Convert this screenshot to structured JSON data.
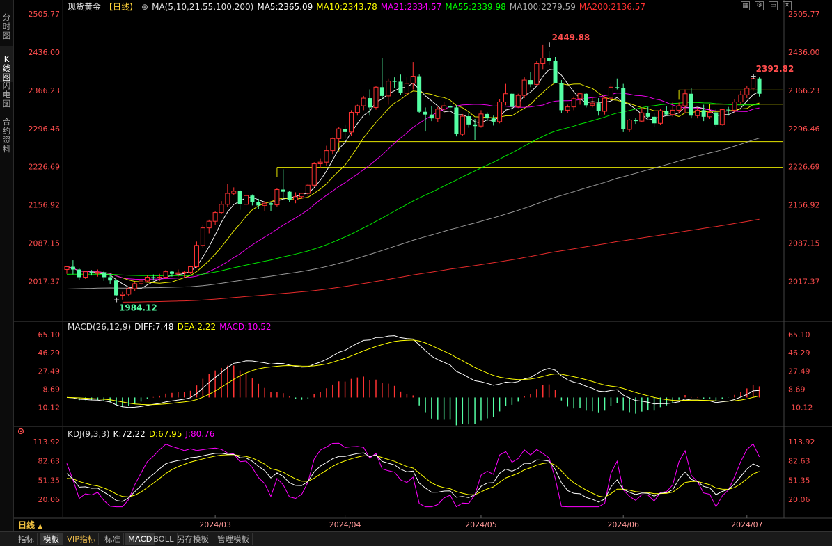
{
  "left_tabs": [
    {
      "label": "分时图",
      "chars": [
        "分",
        "时",
        "图"
      ]
    },
    {
      "label": "K线图",
      "chars": [
        "K",
        "线",
        "图"
      ]
    },
    {
      "label": "闪电图",
      "chars": [
        "闪",
        "电",
        "图"
      ]
    },
    {
      "label": "合约资料",
      "chars": [
        "合",
        "约",
        "资",
        "料"
      ]
    }
  ],
  "active_left_tab": 1,
  "bottom_tabs": [
    "指标",
    "模板",
    "VIP指标",
    "标准",
    "MACD",
    "BOLL",
    "另存模板",
    "管理模板"
  ],
  "active_bottom_tabs": [
    "模板",
    "MACD"
  ],
  "period_label": "日线",
  "period_arrow": "▲",
  "window_icons": [
    "grid-icon",
    "settings-icon",
    "restore-icon",
    "close-icon"
  ],
  "colors": {
    "up": "#ff3232",
    "down": "#54ffa4",
    "ma5": "#ffffff",
    "ma10": "#ffff00",
    "ma21": "#ff00ff",
    "ma55": "#00ff00",
    "ma100": "#aaaaaa",
    "ma200": "#ff3030"
  },
  "header": {
    "name": "现货黄金",
    "period": "【日线】",
    "plus": "⊕",
    "ma_label": "MA(5,10,21,55,100,200)",
    "ma5": "MA5:2365.09",
    "ma10": "MA10:2343.78",
    "ma21": "MA21:2334.57",
    "ma55": "MA55:2339.98",
    "ma100": "MA100:2279.59",
    "ma200": "MA200:2136.57"
  },
  "macd_header": {
    "label": "MACD(26,12,9)",
    "diff": "DIFF:7.48",
    "dea": "DEA:2.22",
    "macd": "MACD:10.52"
  },
  "kdj_header": {
    "label": "KDJ(9,3,3)",
    "k": "K:72.22",
    "d": "D:67.95",
    "j": "J:80.76"
  },
  "chart_data": {
    "type": "candlestick",
    "instrument": "现货黄金",
    "period": "日线",
    "price_ticks": [
      "2505.77",
      "2436.00",
      "2366.23",
      "2296.46",
      "2226.69",
      "2156.92",
      "2087.15",
      "2017.37"
    ],
    "macd_ticks": [
      "65.10",
      "46.29",
      "27.49",
      "8.69",
      "-10.12"
    ],
    "kdj_ticks": [
      "113.92",
      "82.63",
      "51.35",
      "20.06"
    ],
    "x_labels": [
      {
        "label": "2024/03",
        "index": 24
      },
      {
        "label": "2024/04",
        "index": 45
      },
      {
        "label": "2024/05",
        "index": 67
      },
      {
        "label": "2024/06",
        "index": 90
      },
      {
        "label": "2024/07",
        "index": 110
      }
    ],
    "annotations": [
      {
        "text": "2449.88",
        "index": 78,
        "price": 2449.88,
        "pos": "above"
      },
      {
        "text": "1984.12",
        "index": 8,
        "price": 1984.12,
        "pos": "below"
      },
      {
        "text": "2392.82",
        "index": 111,
        "price": 2392.82,
        "pos": "above"
      }
    ],
    "levels": [
      {
        "price": 2366.8,
        "from": 99,
        "to": 115
      },
      {
        "price": 2341.0,
        "from": 104,
        "to": 115
      },
      {
        "price": 2272.5,
        "from": 44,
        "to": 115
      },
      {
        "price": 2225.5,
        "from": 34,
        "to": 115
      }
    ],
    "dates": [
      "2024-02-01",
      "2024-02-02",
      "2024-02-05",
      "2024-02-06",
      "2024-02-07",
      "2024-02-08",
      "2024-02-09",
      "2024-02-12",
      "2024-02-13",
      "2024-02-14",
      "2024-02-15",
      "2024-02-16",
      "2024-02-19",
      "2024-02-20",
      "2024-02-21",
      "2024-02-22",
      "2024-02-23",
      "2024-02-26",
      "2024-02-27",
      "2024-02-28",
      "2024-02-29",
      "2024-03-01",
      "2024-03-04",
      "2024-03-05",
      "2024-03-06",
      "2024-03-07",
      "2024-03-08",
      "2024-03-11",
      "2024-03-12",
      "2024-03-13",
      "2024-03-14",
      "2024-03-15",
      "2024-03-18",
      "2024-03-19",
      "2024-03-20",
      "2024-03-21",
      "2024-03-22",
      "2024-03-25",
      "2024-03-26",
      "2024-03-27",
      "2024-03-28",
      "2024-03-29",
      "2024-04-01",
      "2024-04-02",
      "2024-04-03",
      "2024-04-04",
      "2024-04-05",
      "2024-04-08",
      "2024-04-09",
      "2024-04-10",
      "2024-04-11",
      "2024-04-12",
      "2024-04-15",
      "2024-04-16",
      "2024-04-17",
      "2024-04-18",
      "2024-04-19",
      "2024-04-22",
      "2024-04-23",
      "2024-04-24",
      "2024-04-25",
      "2024-04-26",
      "2024-04-29",
      "2024-04-30",
      "2024-05-01",
      "2024-05-02",
      "2024-05-03",
      "2024-05-06",
      "2024-05-07",
      "2024-05-08",
      "2024-05-09",
      "2024-05-10",
      "2024-05-13",
      "2024-05-14",
      "2024-05-15",
      "2024-05-16",
      "2024-05-17",
      "2024-05-20",
      "2024-05-21",
      "2024-05-22",
      "2024-05-23",
      "2024-05-24",
      "2024-05-27",
      "2024-05-28",
      "2024-05-29",
      "2024-05-30",
      "2024-05-31",
      "2024-06-03",
      "2024-06-04",
      "2024-06-05",
      "2024-06-06",
      "2024-06-07",
      "2024-06-10",
      "2024-06-11",
      "2024-06-12",
      "2024-06-13",
      "2024-06-14",
      "2024-06-17",
      "2024-06-18",
      "2024-06-19",
      "2024-06-20",
      "2024-06-21",
      "2024-06-24",
      "2024-06-25",
      "2024-06-26",
      "2024-06-27",
      "2024-06-28",
      "2024-07-01",
      "2024-07-02",
      "2024-07-03",
      "2024-07-04",
      "2024-07-05",
      "2024-07-08"
    ],
    "ohlc": [
      [
        2039,
        2046,
        2031,
        2044
      ],
      [
        2044,
        2056,
        2030,
        2039
      ],
      [
        2039,
        2042,
        2020,
        2025
      ],
      [
        2025,
        2037,
        2022,
        2035
      ],
      [
        2035,
        2038,
        2028,
        2032
      ],
      [
        2032,
        2039,
        2026,
        2034
      ],
      [
        2034,
        2036,
        2018,
        2025
      ],
      [
        2025,
        2031,
        2013,
        2019
      ],
      [
        2019,
        2021,
        1990,
        1992
      ],
      [
        1992,
        1998,
        1984,
        1994
      ],
      [
        1994,
        2007,
        1990,
        2004
      ],
      [
        2004,
        2016,
        2000,
        2013
      ],
      [
        2013,
        2020,
        2009,
        2018
      ],
      [
        2018,
        2028,
        2016,
        2025
      ],
      [
        2025,
        2030,
        2019,
        2024
      ],
      [
        2024,
        2031,
        2018,
        2025
      ],
      [
        2025,
        2038,
        2022,
        2035
      ],
      [
        2035,
        2036,
        2026,
        2031
      ],
      [
        2031,
        2039,
        2026,
        2033
      ],
      [
        2033,
        2036,
        2024,
        2034
      ],
      [
        2034,
        2046,
        2031,
        2044
      ],
      [
        2044,
        2090,
        2042,
        2083
      ],
      [
        2083,
        2120,
        2079,
        2115
      ],
      [
        2115,
        2130,
        2105,
        2127
      ],
      [
        2127,
        2145,
        2120,
        2143
      ],
      [
        2143,
        2164,
        2140,
        2158
      ],
      [
        2158,
        2195,
        2153,
        2178
      ],
      [
        2178,
        2189,
        2175,
        2182
      ],
      [
        2182,
        2184,
        2148,
        2158
      ],
      [
        2158,
        2176,
        2155,
        2174
      ],
      [
        2174,
        2176,
        2156,
        2162
      ],
      [
        2162,
        2168,
        2150,
        2156
      ],
      [
        2156,
        2164,
        2146,
        2160
      ],
      [
        2160,
        2162,
        2146,
        2157
      ],
      [
        2157,
        2188,
        2154,
        2185
      ],
      [
        2185,
        2222,
        2168,
        2181
      ],
      [
        2181,
        2183,
        2162,
        2166
      ],
      [
        2166,
        2180,
        2160,
        2172
      ],
      [
        2172,
        2179,
        2168,
        2178
      ],
      [
        2178,
        2196,
        2172,
        2193
      ],
      [
        2193,
        2235,
        2190,
        2232
      ],
      [
        2232,
        2242,
        2225,
        2235
      ],
      [
        2235,
        2265,
        2229,
        2256
      ],
      [
        2256,
        2280,
        2249,
        2278
      ],
      [
        2278,
        2300,
        2270,
        2296
      ],
      [
        2296,
        2304,
        2278,
        2290
      ],
      [
        2290,
        2330,
        2283,
        2326
      ],
      [
        2326,
        2340,
        2320,
        2338
      ],
      [
        2338,
        2356,
        2330,
        2352
      ],
      [
        2352,
        2368,
        2320,
        2335
      ],
      [
        2335,
        2374,
        2331,
        2372
      ],
      [
        2372,
        2425,
        2350,
        2356
      ],
      [
        2356,
        2388,
        2340,
        2383
      ],
      [
        2383,
        2390,
        2370,
        2382
      ],
      [
        2382,
        2395,
        2358,
        2361
      ],
      [
        2361,
        2390,
        2355,
        2379
      ],
      [
        2379,
        2418,
        2368,
        2392
      ],
      [
        2392,
        2395,
        2325,
        2327
      ],
      [
        2327,
        2335,
        2291,
        2322
      ],
      [
        2322,
        2338,
        2310,
        2315
      ],
      [
        2315,
        2336,
        2308,
        2332
      ],
      [
        2332,
        2345,
        2325,
        2338
      ],
      [
        2338,
        2345,
        2328,
        2335
      ],
      [
        2335,
        2339,
        2282,
        2286
      ],
      [
        2286,
        2323,
        2283,
        2319
      ],
      [
        2319,
        2326,
        2298,
        2304
      ],
      [
        2304,
        2314,
        2275,
        2301
      ],
      [
        2301,
        2330,
        2298,
        2323
      ],
      [
        2323,
        2326,
        2310,
        2315
      ],
      [
        2315,
        2320,
        2302,
        2309
      ],
      [
        2309,
        2350,
        2306,
        2345
      ],
      [
        2345,
        2378,
        2339,
        2360
      ],
      [
        2360,
        2362,
        2330,
        2336
      ],
      [
        2336,
        2360,
        2334,
        2357
      ],
      [
        2357,
        2390,
        2352,
        2385
      ],
      [
        2385,
        2400,
        2372,
        2377
      ],
      [
        2377,
        2420,
        2375,
        2415
      ],
      [
        2415,
        2450,
        2405,
        2425
      ],
      [
        2425,
        2437,
        2413,
        2420
      ],
      [
        2420,
        2427,
        2380,
        2380
      ],
      [
        2380,
        2385,
        2325,
        2330
      ],
      [
        2330,
        2340,
        2325,
        2336
      ],
      [
        2336,
        2355,
        2330,
        2351
      ],
      [
        2351,
        2362,
        2340,
        2360
      ],
      [
        2360,
        2362,
        2335,
        2339
      ],
      [
        2339,
        2354,
        2335,
        2343
      ],
      [
        2343,
        2352,
        2320,
        2328
      ],
      [
        2328,
        2355,
        2322,
        2352
      ],
      [
        2352,
        2380,
        2348,
        2372
      ],
      [
        2372,
        2388,
        2368,
        2371
      ],
      [
        2371,
        2378,
        2290,
        2295
      ],
      [
        2295,
        2314,
        2290,
        2312
      ],
      [
        2312,
        2316,
        2305,
        2310
      ],
      [
        2310,
        2335,
        2308,
        2325
      ],
      [
        2325,
        2336,
        2315,
        2318
      ],
      [
        2318,
        2325,
        2300,
        2306
      ],
      [
        2306,
        2333,
        2303,
        2329
      ],
      [
        2329,
        2338,
        2320,
        2322
      ],
      [
        2322,
        2345,
        2318,
        2330
      ],
      [
        2330,
        2344,
        2324,
        2338
      ],
      [
        2338,
        2368,
        2325,
        2360
      ],
      [
        2360,
        2371,
        2315,
        2320
      ],
      [
        2320,
        2335,
        2315,
        2330
      ],
      [
        2330,
        2340,
        2310,
        2318
      ],
      [
        2318,
        2330,
        2314,
        2326
      ],
      [
        2326,
        2332,
        2300,
        2304
      ],
      [
        2304,
        2333,
        2302,
        2331
      ],
      [
        2331,
        2336,
        2320,
        2330
      ],
      [
        2330,
        2350,
        2325,
        2345
      ],
      [
        2345,
        2365,
        2340,
        2358
      ],
      [
        2358,
        2375,
        2352,
        2370
      ],
      [
        2370,
        2393,
        2365,
        2388
      ],
      [
        2388,
        2390,
        2355,
        2360
      ]
    ],
    "indicators": {
      "macd": {
        "fast": 12,
        "slow": 26,
        "signal": 9
      },
      "kdj": {
        "n": 9,
        "m1": 3,
        "m2": 3
      },
      "ma_periods": [
        5,
        10,
        21,
        55,
        100,
        200
      ]
    },
    "ma_start": {
      "ma55": 2030,
      "ma100": 2003,
      "ma200": 1977
    }
  }
}
